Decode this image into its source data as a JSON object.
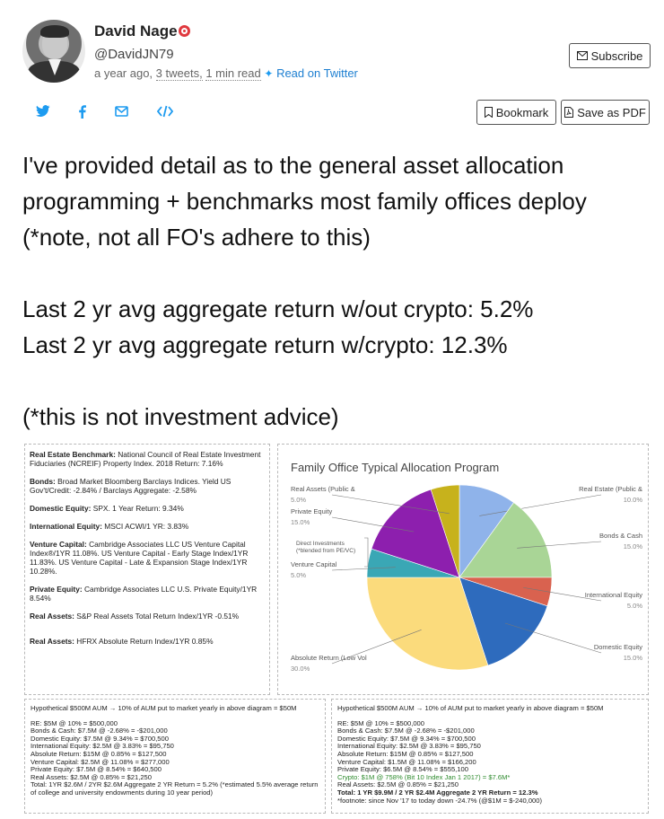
{
  "author": {
    "name": "David Nage",
    "handle": "@DavidJN79",
    "time_ago": "a year ago,",
    "tweet_count": "3 tweets,",
    "read_time": "1 min read",
    "read_on_twitter": "Read on Twitter"
  },
  "buttons": {
    "subscribe": "Subscribe",
    "bookmark": "Bookmark",
    "save_pdf": "Save as PDF"
  },
  "share_icons": [
    "twitter-icon",
    "facebook-icon",
    "email-icon",
    "embed-icon"
  ],
  "tweet_lines": [
    "I've provided detail as to the general asset allocation",
    "programming + benchmarks most family offices deploy",
    "(*note, not all FO's adhere to this)",
    "",
    "Last 2 yr avg aggregate return w/out crypto: 5.2%",
    "Last 2 yr avg aggregate return w/crypto: 12.3%",
    "",
    "(*this is not investment advice)"
  ],
  "benchmarks": [
    {
      "label": "Real Estate Benchmark:",
      "text": "National Council of Real Estate Investment Fiduciaries (NCREIF) Property Index. 2018 Return: 7.16%"
    },
    {
      "label": "Bonds:",
      "text": "Broad Market Bloomberg Barclays Indices. Yield US Gov't/Credit: -2.84% / Barclays Aggregate: -2.58%"
    },
    {
      "label": "Domestic Equity:",
      "text": "SPX. 1 Year Return: 9.34%"
    },
    {
      "label": "International Equity:",
      "text": "MSCI ACWI/1 YR: 3.83%"
    },
    {
      "label": "Venture Capital:",
      "text": "Cambridge Associates LLC US Venture Capital Index®/1YR 11.08%. US Venture Capital - Early Stage Index/1YR 11.83%. US Venture Capital - Late & Expansion Stage Index/1YR 10.28%."
    },
    {
      "label": "Private Equity:",
      "text": "Cambridge Associates LLC U.S. Private Equity/1YR 8.54%"
    },
    {
      "label": "Real Assets:",
      "text": "S&P Real Assets Total Return Index/1YR -0.51%"
    },
    {
      "label": "Real Assets:",
      "text": "HFRX Absolute Return Index/1YR 0.85%"
    }
  ],
  "chart_data": {
    "type": "pie",
    "title": "Family Office Typical Allocation Program",
    "series": [
      {
        "label": "Real Estate (Public &",
        "value_label": "10.0%",
        "value": 10.0,
        "color": "#8fb3ea"
      },
      {
        "label": "Bonds & Cash",
        "value_label": "15.0%",
        "value": 15.0,
        "color": "#a9d596"
      },
      {
        "label": "International Equity",
        "value_label": "5.0%",
        "value": 5.0,
        "color": "#d9624f"
      },
      {
        "label": "Domestic Equity",
        "value_label": "15.0%",
        "value": 15.0,
        "color": "#2e6bbd"
      },
      {
        "label": "Absolute Return (Low Vol",
        "value_label": "30.0%",
        "value": 30.0,
        "color": "#fbdb7c"
      },
      {
        "label": "Venture Capital",
        "value_label": "5.0%",
        "value": 5.0,
        "color": "#3aa7b5"
      },
      {
        "label": "Private Equity",
        "value_label": "15.0%",
        "value": 15.0,
        "color": "#8d1fae"
      },
      {
        "label": "Real Assets (Public &",
        "value_label": "5.0%",
        "value": 5.0,
        "color": "#c7b21c"
      }
    ],
    "annotation": "Direct Investments (*blended from PE/VC)"
  },
  "hypothetical_left": {
    "header": "Hypothetical $500M AUM → 10% of AUM put to market yearly in above diagram = $50M",
    "lines": [
      "RE: $5M @ 10% = $500,000",
      "Bonds & Cash: $7.5M @ -2.68% = -$201,000",
      "Domestic Equity: $7.5M @ 9.34% = $700,500",
      "International Equity: $2.5M @ 3.83% = $95,750",
      "Absolute Return: $15M @ 0.85% = $127,500",
      "Venture Capital: $2.5M @ 11.08% = $277,000",
      "Private Equity: $7.5M @ 8.54% = $640,500",
      "Real Assets: $2.5M @ 0.85% = $21,250",
      "Total: 1YR $2.6M / 2YR $2.6M  Aggregate 2 YR Return = 5.2% (*estimated 5.5% average return of college and university endowments during 10 year period)"
    ]
  },
  "hypothetical_right": {
    "header": "Hypothetical $500M AUM → 10% of AUM put to market yearly in above diagram = $50M",
    "lines": [
      "RE: $5M @ 10% = $500,000",
      "Bonds & Cash: $7.5M @ -2.68% = -$201,000",
      "Domestic Equity: $7.5M @ 9.34% = $700,500",
      "International Equity: $2.5M @ 3.83% = $95,750",
      "Absolute Return: $15M @ 0.85% = $127,500",
      "Venture Capital: $1.5M @ 11.08% = $166,200",
      "Private Equity: $6.5M @ 8.54% = $555,100"
    ],
    "crypto_line": "Crypto: $1M @ 758% (Bit 10 Index Jan 1 2017) = $7.6M*",
    "after_lines": [
      "Real Assets: $2.5M @ 0.85% = $21,250"
    ],
    "total_line": "Total: 1 YR $9.9M / 2 YR $2.4M Aggregate 2 YR Return = 12.3%",
    "footnote": "*footnote: since Nov '17 to today down -24.7% (@$1M = $-240,000)"
  }
}
